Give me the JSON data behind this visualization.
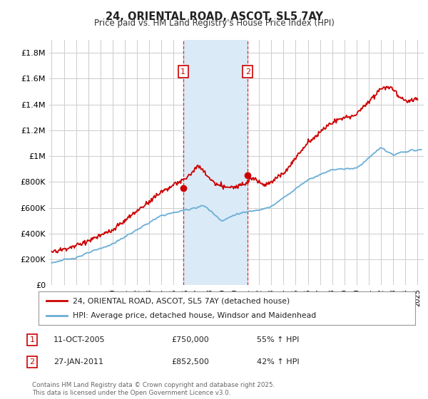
{
  "title": "24, ORIENTAL ROAD, ASCOT, SL5 7AY",
  "subtitle": "Price paid vs. HM Land Registry's House Price Index (HPI)",
  "ylabel_ticks": [
    "£0",
    "£200K",
    "£400K",
    "£600K",
    "£800K",
    "£1M",
    "£1.2M",
    "£1.4M",
    "£1.6M",
    "£1.8M"
  ],
  "ytick_vals": [
    0,
    200000,
    400000,
    600000,
    800000,
    1000000,
    1200000,
    1400000,
    1600000,
    1800000
  ],
  "ylim": [
    0,
    1900000
  ],
  "xlim_start": 1994.8,
  "xlim_end": 2025.5,
  "sale1_x": 2005.78,
  "sale1_y": 750000,
  "sale1_label": "1",
  "sale1_date": "11-OCT-2005",
  "sale1_price": "£750,000",
  "sale1_hpi": "55% ↑ HPI",
  "sale2_x": 2011.07,
  "sale2_y": 852500,
  "sale2_label": "2",
  "sale2_date": "27-JAN-2011",
  "sale2_price": "£852,500",
  "sale2_hpi": "42% ↑ HPI",
  "shade_color": "#daeaf7",
  "line1_color": "#cc0000",
  "line2_color": "#6baed6",
  "marker_color": "#cc0000",
  "legend1": "24, ORIENTAL ROAD, ASCOT, SL5 7AY (detached house)",
  "legend2": "HPI: Average price, detached house, Windsor and Maidenhead",
  "footnote": "Contains HM Land Registry data © Crown copyright and database right 2025.\nThis data is licensed under the Open Government Licence v3.0.",
  "background_color": "#ffffff",
  "grid_color": "#cccccc"
}
